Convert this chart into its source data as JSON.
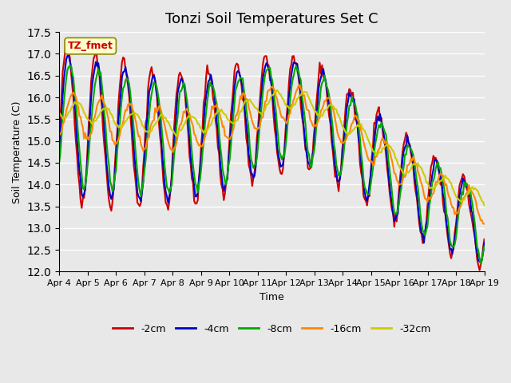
{
  "title": "Tonzi Soil Temperatures Set C",
  "xlabel": "Time",
  "ylabel": "Soil Temperature (C)",
  "ylim": [
    12.0,
    17.5
  ],
  "yticks": [
    12.0,
    12.5,
    13.0,
    13.5,
    14.0,
    14.5,
    15.0,
    15.5,
    16.0,
    16.5,
    17.0,
    17.5
  ],
  "xtick_labels": [
    "Apr 4",
    "Apr 5",
    "Apr 6",
    "Apr 7",
    "Apr 8",
    "Apr 9",
    "Apr 10",
    "Apr 11",
    "Apr 12",
    "Apr 13",
    "Apr 14",
    "Apr 15",
    "Apr 16",
    "Apr 17",
    "Apr 18",
    "Apr 19"
  ],
  "series_colors": [
    "#cc0000",
    "#0000cc",
    "#00aa00",
    "#ff8800",
    "#cccc00"
  ],
  "series_labels": [
    "-2cm",
    "-4cm",
    "-8cm",
    "-16cm",
    "-32cm"
  ],
  "line_width": 1.5,
  "bg_color": "#e8e8e8",
  "plot_bg_color": "#e8e8e8",
  "annotation_text": "TZ_fmet",
  "annotation_bg": "#ffffcc",
  "annotation_border": "#888800",
  "annotation_color": "#cc0000"
}
